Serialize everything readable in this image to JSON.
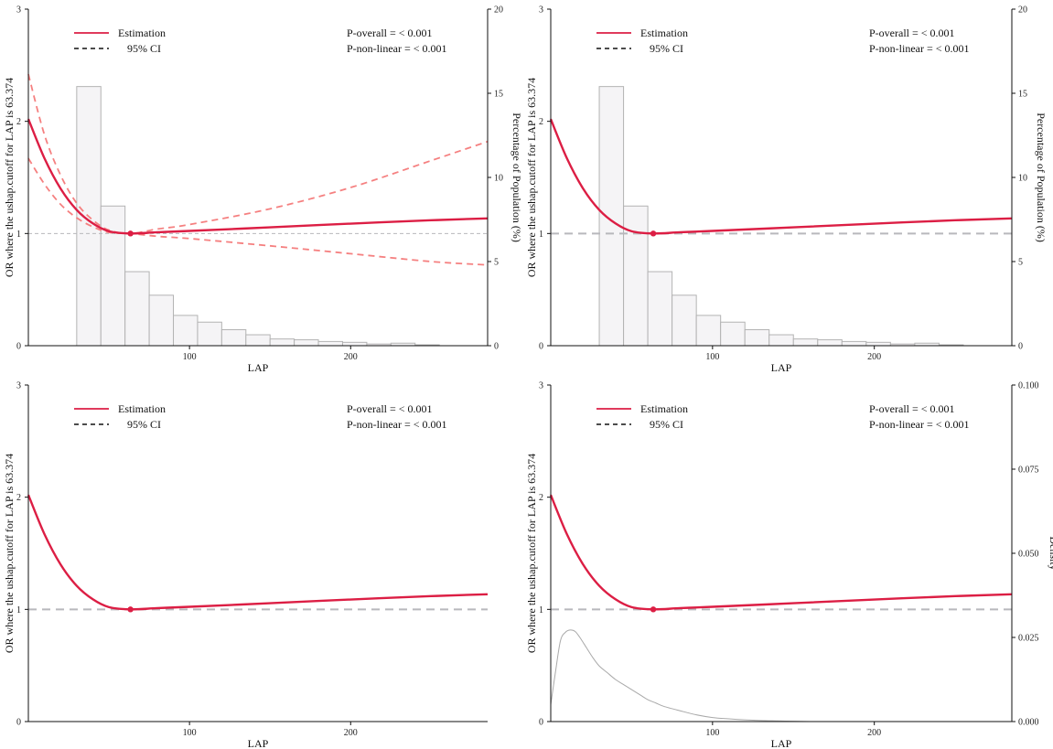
{
  "colors": {
    "estimate": "#dc1e44",
    "ci": "#f58080",
    "reference": "#b8b8bc",
    "axis": "#111111",
    "hist_fill": "#f5f4f6",
    "hist_edge": "#b3b3b3",
    "density": "#a9a9a9"
  },
  "chart_data": [
    {
      "type": "line",
      "panel": "top-left",
      "x_axis_label": "LAP",
      "y_axis_label": "OR where the ushap.cutoff for LAP is 63.374",
      "secondary_y_label": "Percentage of Population (%)",
      "xlim": [
        0,
        285
      ],
      "ylim": [
        0,
        3
      ],
      "secondary_ylim": [
        0,
        20
      ],
      "x_ticks": [
        "100",
        "200"
      ],
      "x_tick_values": [
        100,
        200
      ],
      "y_ticks": [
        "0",
        "1",
        "2",
        "3"
      ],
      "secondary_ticks": [
        "0",
        "5",
        "10",
        "15",
        "20"
      ],
      "legend": {
        "estimation": "Estimation",
        "ci": "95% CI"
      },
      "p_overall": "P-overall = < 0.001",
      "p_nonlinear": "P-non-linear = < 0.001",
      "reference_value": 1,
      "cutoff_x": 63.374,
      "estimate": {
        "x": [
          0,
          10,
          20,
          30,
          40,
          50,
          63.374,
          80,
          100,
          150,
          200,
          250,
          285
        ],
        "y": [
          2.02,
          1.67,
          1.4,
          1.21,
          1.09,
          1.02,
          1.0,
          1.011,
          1.023,
          1.055,
          1.088,
          1.118,
          1.135
        ]
      },
      "ci_upper": {
        "x": [
          0,
          10,
          20,
          30,
          40,
          50,
          63.374,
          80,
          100,
          150,
          200,
          250,
          285
        ],
        "y": [
          2.42,
          1.88,
          1.52,
          1.27,
          1.12,
          1.03,
          1.0,
          1.04,
          1.08,
          1.22,
          1.41,
          1.65,
          1.82
        ]
      },
      "ci_lower": {
        "x": [
          0,
          10,
          20,
          30,
          40,
          50,
          63.374,
          80,
          100,
          150,
          200,
          250,
          285
        ],
        "y": [
          1.67,
          1.44,
          1.26,
          1.14,
          1.06,
          1.01,
          1.0,
          0.975,
          0.955,
          0.89,
          0.82,
          0.75,
          0.72
        ]
      },
      "histogram": {
        "bin_edges": [
          30,
          45,
          60,
          75,
          90,
          105,
          120,
          135,
          150,
          165,
          180,
          195,
          210,
          225,
          240,
          255
        ],
        "percent": [
          15.4,
          8.3,
          4.4,
          3.0,
          1.8,
          1.4,
          0.95,
          0.65,
          0.4,
          0.35,
          0.25,
          0.2,
          0.1,
          0.15,
          0.05
        ]
      }
    },
    {
      "type": "line",
      "panel": "top-right",
      "x_axis_label": "LAP",
      "y_axis_label": "OR where the ushap.cutoff for LAP is 63.374",
      "secondary_y_label": "Percentage of Population (%)",
      "xlim": [
        0,
        285
      ],
      "ylim": [
        0,
        3
      ],
      "secondary_ylim": [
        0,
        20
      ],
      "x_ticks": [
        "100",
        "200"
      ],
      "x_tick_values": [
        100,
        200
      ],
      "y_ticks": [
        "0",
        "1",
        "2",
        "3"
      ],
      "secondary_ticks": [
        "0",
        "5",
        "10",
        "15",
        "20"
      ],
      "legend": {
        "estimation": "Estimation",
        "ci": "95% CI"
      },
      "p_overall": "P-overall = < 0.001",
      "p_nonlinear": "P-non-linear = < 0.001",
      "reference_value": 1,
      "cutoff_x": 63.374,
      "estimate": {
        "x": [
          0,
          10,
          20,
          30,
          40,
          50,
          63.374,
          80,
          100,
          150,
          200,
          250,
          285
        ],
        "y": [
          2.02,
          1.67,
          1.4,
          1.21,
          1.09,
          1.02,
          1.0,
          1.011,
          1.023,
          1.055,
          1.088,
          1.118,
          1.135
        ]
      },
      "histogram": {
        "bin_edges": [
          30,
          45,
          60,
          75,
          90,
          105,
          120,
          135,
          150,
          165,
          180,
          195,
          210,
          225,
          240,
          255
        ],
        "percent": [
          15.4,
          8.3,
          4.4,
          3.0,
          1.8,
          1.4,
          0.95,
          0.65,
          0.4,
          0.35,
          0.25,
          0.2,
          0.1,
          0.15,
          0.05
        ]
      }
    },
    {
      "type": "line",
      "panel": "bottom-left",
      "x_axis_label": "LAP",
      "y_axis_label": "OR where the ushap.cutoff for LAP is 63.374",
      "xlim": [
        0,
        285
      ],
      "ylim": [
        0,
        3
      ],
      "x_ticks": [
        "100",
        "200"
      ],
      "x_tick_values": [
        100,
        200
      ],
      "y_ticks": [
        "0",
        "1",
        "2",
        "3"
      ],
      "legend": {
        "estimation": "Estimation",
        "ci": "95% CI"
      },
      "p_overall": "P-overall = < 0.001",
      "p_nonlinear": "P-non-linear = < 0.001",
      "reference_value": 1,
      "cutoff_x": 63.374,
      "estimate": {
        "x": [
          0,
          10,
          20,
          30,
          40,
          50,
          63.374,
          80,
          100,
          150,
          200,
          250,
          285
        ],
        "y": [
          2.02,
          1.67,
          1.4,
          1.21,
          1.09,
          1.02,
          1.0,
          1.011,
          1.023,
          1.055,
          1.088,
          1.118,
          1.135
        ]
      }
    },
    {
      "type": "line",
      "panel": "bottom-right",
      "x_axis_label": "LAP",
      "y_axis_label": "OR where the ushap.cutoff for LAP is 63.374",
      "secondary_y_label": "Density",
      "xlim": [
        0,
        285
      ],
      "ylim": [
        0,
        3
      ],
      "secondary_ylim": [
        0,
        0.1
      ],
      "x_ticks": [
        "100",
        "200"
      ],
      "x_tick_values": [
        100,
        200
      ],
      "y_ticks": [
        "0",
        "1",
        "2",
        "3"
      ],
      "secondary_ticks": [
        "0.000",
        "0.025",
        "0.050",
        "0.075",
        "0.100"
      ],
      "legend": {
        "estimation": "Estimation",
        "ci": "95% CI"
      },
      "p_overall": "P-overall = < 0.001",
      "p_nonlinear": "P-non-linear = < 0.001",
      "reference_value": 1,
      "cutoff_x": 63.374,
      "estimate": {
        "x": [
          0,
          10,
          20,
          30,
          40,
          50,
          63.374,
          80,
          100,
          150,
          200,
          250,
          285
        ],
        "y": [
          2.02,
          1.67,
          1.4,
          1.21,
          1.09,
          1.02,
          1.0,
          1.011,
          1.023,
          1.055,
          1.088,
          1.118,
          1.135
        ]
      },
      "density": {
        "x": [
          0,
          3,
          6,
          9,
          12,
          15,
          18,
          22,
          26,
          30,
          35,
          40,
          45,
          50,
          55,
          60,
          65,
          70,
          80,
          90,
          100,
          110,
          120,
          130,
          140,
          150,
          160
        ],
        "y": [
          0.005,
          0.015,
          0.024,
          0.0265,
          0.0272,
          0.0268,
          0.025,
          0.022,
          0.019,
          0.0165,
          0.0145,
          0.0125,
          0.011,
          0.0095,
          0.008,
          0.0065,
          0.0055,
          0.0045,
          0.0032,
          0.002,
          0.0012,
          0.0008,
          0.0005,
          0.0003,
          0.0002,
          0.0001,
          0.0
        ]
      }
    }
  ]
}
